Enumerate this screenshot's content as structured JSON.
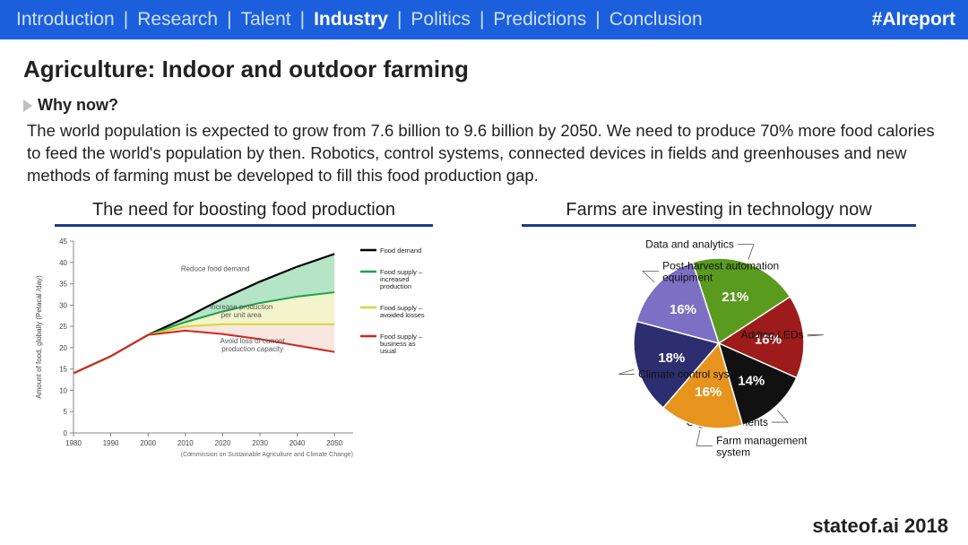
{
  "navbar": {
    "tabs": [
      "Introduction",
      "Research",
      "Talent",
      "Industry",
      "Politics",
      "Predictions",
      "Conclusion"
    ],
    "active_index": 3,
    "hashtag": "#AIreport",
    "bg_color": "#1b5fdd",
    "inactive_color": "#cfe0fb",
    "active_color": "#ffffff"
  },
  "title": "Agriculture: Indoor and outdoor farming",
  "why_heading": "Why now?",
  "body_text": "The world population is expected to grow from 7.6 billion to 9.6 billion by 2050. We need to produce 70% more food calories to feed the world's population by then. Robotics, control systems, connected devices in fields and greenhouses and new methods of farming must be developed to fill this food production gap.",
  "line_chart": {
    "title": "The need for boosting food production",
    "type": "area-line",
    "x_years": [
      1980,
      1990,
      2000,
      2010,
      2020,
      2030,
      2040,
      2050
    ],
    "xlim": [
      1980,
      2055
    ],
    "ylim": [
      0,
      45
    ],
    "ytick_step": 5,
    "ylabel": "Amount of food, globally (Petacal /day)",
    "axis_color": "#888888",
    "grid": false,
    "series": {
      "demand": {
        "color": "#000000",
        "width": 2.2,
        "y": [
          14,
          18,
          23,
          27,
          31.5,
          35.5,
          39,
          42
        ]
      },
      "supply_incprod": {
        "color": "#19a24a",
        "width": 2,
        "y": [
          14,
          18,
          23,
          26,
          28.5,
          30.5,
          32,
          33
        ]
      },
      "supply_avoided": {
        "color": "#d7d63a",
        "width": 2,
        "y": [
          14,
          18,
          23,
          25,
          25.5,
          25.5,
          25.5,
          25.5
        ]
      },
      "supply_bau": {
        "color": "#d3261f",
        "width": 2,
        "y": [
          14,
          18,
          23,
          24,
          23.2,
          22,
          20.5,
          19
        ]
      }
    },
    "fills": [
      {
        "between": [
          "demand",
          "supply_incprod"
        ],
        "color": "#8fd6a7",
        "opacity": 0.65
      },
      {
        "between": [
          "supply_incprod",
          "supply_avoided"
        ],
        "color": "#e9e9a2",
        "opacity": 0.55
      },
      {
        "between": [
          "supply_avoided",
          "supply_bau"
        ],
        "color": "#f3d2c6",
        "opacity": 0.55
      }
    ],
    "annotations": [
      {
        "text": "Reduce food demand",
        "x": 2018,
        "y": 38
      },
      {
        "text": "Increase production\nper unit area",
        "x": 2025,
        "y": 29
      },
      {
        "text": "Avoid loss of current\nproduction capacity",
        "x": 2028,
        "y": 21
      }
    ],
    "legend": [
      {
        "label": "Food demand",
        "color": "#000000"
      },
      {
        "label": "Food supply –\nincreased\nproduction",
        "color": "#19a24a"
      },
      {
        "label": "Food supply –\navoided losses",
        "color": "#d7d63a"
      },
      {
        "label": "Food supply –\nbusiness as\nusual",
        "color": "#d3261f"
      }
    ],
    "citation": "(Commission on Sustainable Agriculture and Climate Change)"
  },
  "pie_chart": {
    "title": "Farms are investing in technology now",
    "type": "pie",
    "slices": [
      {
        "label": "Data and analytics",
        "pct": 21,
        "color": "#5a9b1f",
        "label_side": "left"
      },
      {
        "label": "Adding LEDs",
        "pct": 16,
        "color": "#9e1b1b",
        "label_side": "left"
      },
      {
        "label": "Organic nutrients",
        "pct": 14,
        "color": "#111111",
        "label_side": "left"
      },
      {
        "label": "Farm management\nsystem",
        "pct": 16,
        "color": "#e7941e",
        "label_side": "right"
      },
      {
        "label": "Climate control system",
        "pct": 18,
        "color": "#2c2e6f",
        "label_side": "right"
      },
      {
        "label": "Post-harvest automation\nequipment",
        "pct": 16,
        "color": "#7d6fc4",
        "label_side": "right"
      }
    ],
    "start_angle_deg": -108,
    "stroke": "#ffffff",
    "stroke_width": 1.5
  },
  "footer": "stateof.ai 2018"
}
